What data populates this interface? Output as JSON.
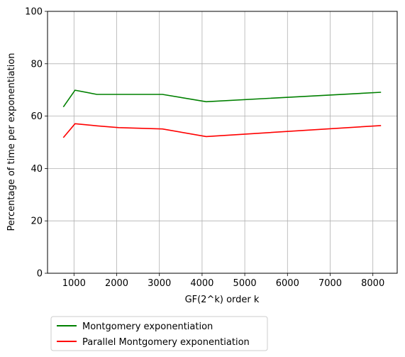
{
  "chart_data": {
    "type": "line",
    "title": "",
    "xlabel": "GF(2^k) order k",
    "ylabel": "Percentage of time per exponentiation",
    "xlim": [
      380,
      8570
    ],
    "ylim": [
      0,
      100
    ],
    "xticks": [
      1000,
      2000,
      3000,
      4000,
      5000,
      6000,
      7000,
      8000
    ],
    "yticks": [
      0,
      20,
      40,
      60,
      80,
      100
    ],
    "grid": true,
    "legend_position": "below",
    "series": [
      {
        "name": "Montgomery exponentiation",
        "color": "#008000",
        "x": [
          751,
          1024,
          1536,
          2048,
          3072,
          4096,
          8192
        ],
        "y": [
          63.5,
          69.9,
          68.3,
          68.3,
          68.3,
          65.5,
          69.1
        ]
      },
      {
        "name": "Parallel Montgomery exponentiation",
        "color": "#ff0000",
        "x": [
          751,
          1024,
          1536,
          2048,
          3072,
          4096,
          8192
        ],
        "y": [
          51.8,
          57.1,
          56.3,
          55.6,
          55.1,
          52.2,
          56.4
        ]
      }
    ]
  }
}
